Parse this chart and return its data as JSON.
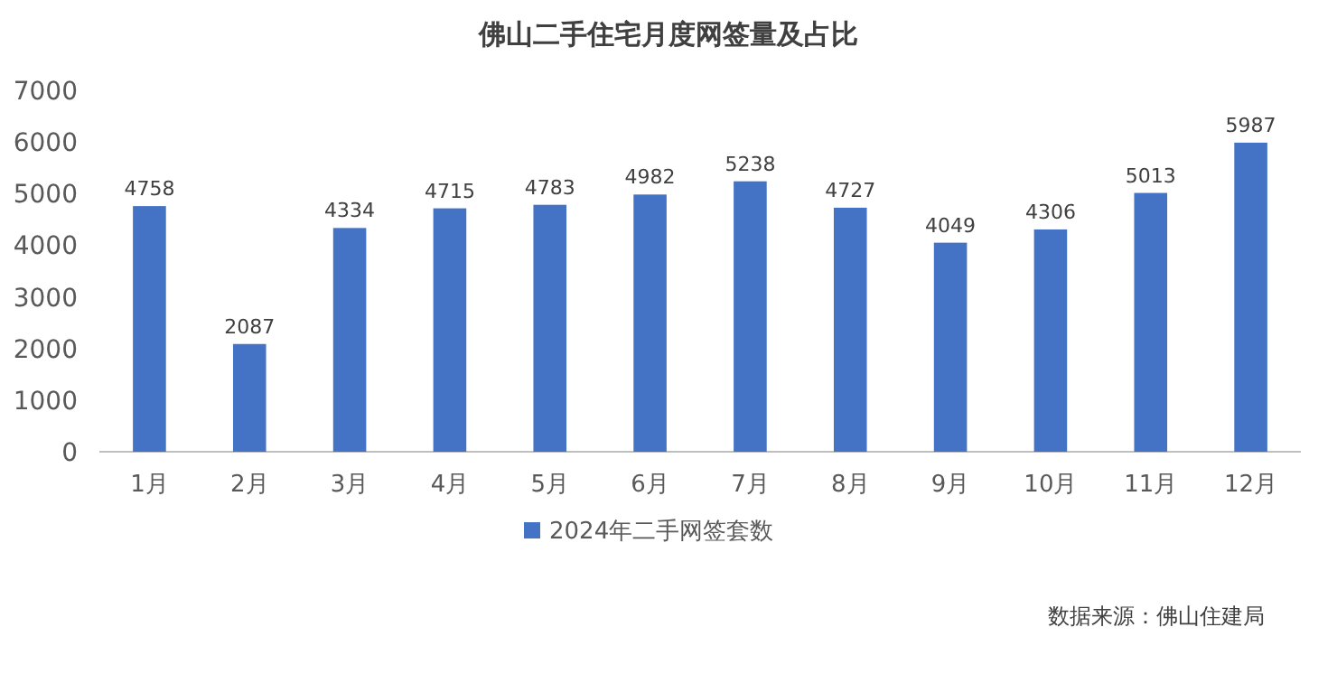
{
  "chart_data": {
    "type": "bar",
    "title": "佛山二手住宅月度网签量及占比",
    "categories": [
      "1月",
      "2月",
      "3月",
      "4月",
      "5月",
      "6月",
      "7月",
      "8月",
      "9月",
      "10月",
      "11月",
      "12月"
    ],
    "series": [
      {
        "name": "2024年二手网签套数",
        "color": "#4472c4",
        "values": [
          4758,
          2087,
          4334,
          4715,
          4783,
          4982,
          5238,
          4727,
          4049,
          4306,
          5013,
          5987
        ]
      }
    ],
    "ylim": [
      0,
      7000
    ],
    "yticks": [
      0,
      1000,
      2000,
      3000,
      4000,
      5000,
      6000,
      7000
    ],
    "data_labels": true,
    "legend": "bottom",
    "grid": false,
    "annotations": [
      "数据来源：佛山住建局"
    ]
  }
}
